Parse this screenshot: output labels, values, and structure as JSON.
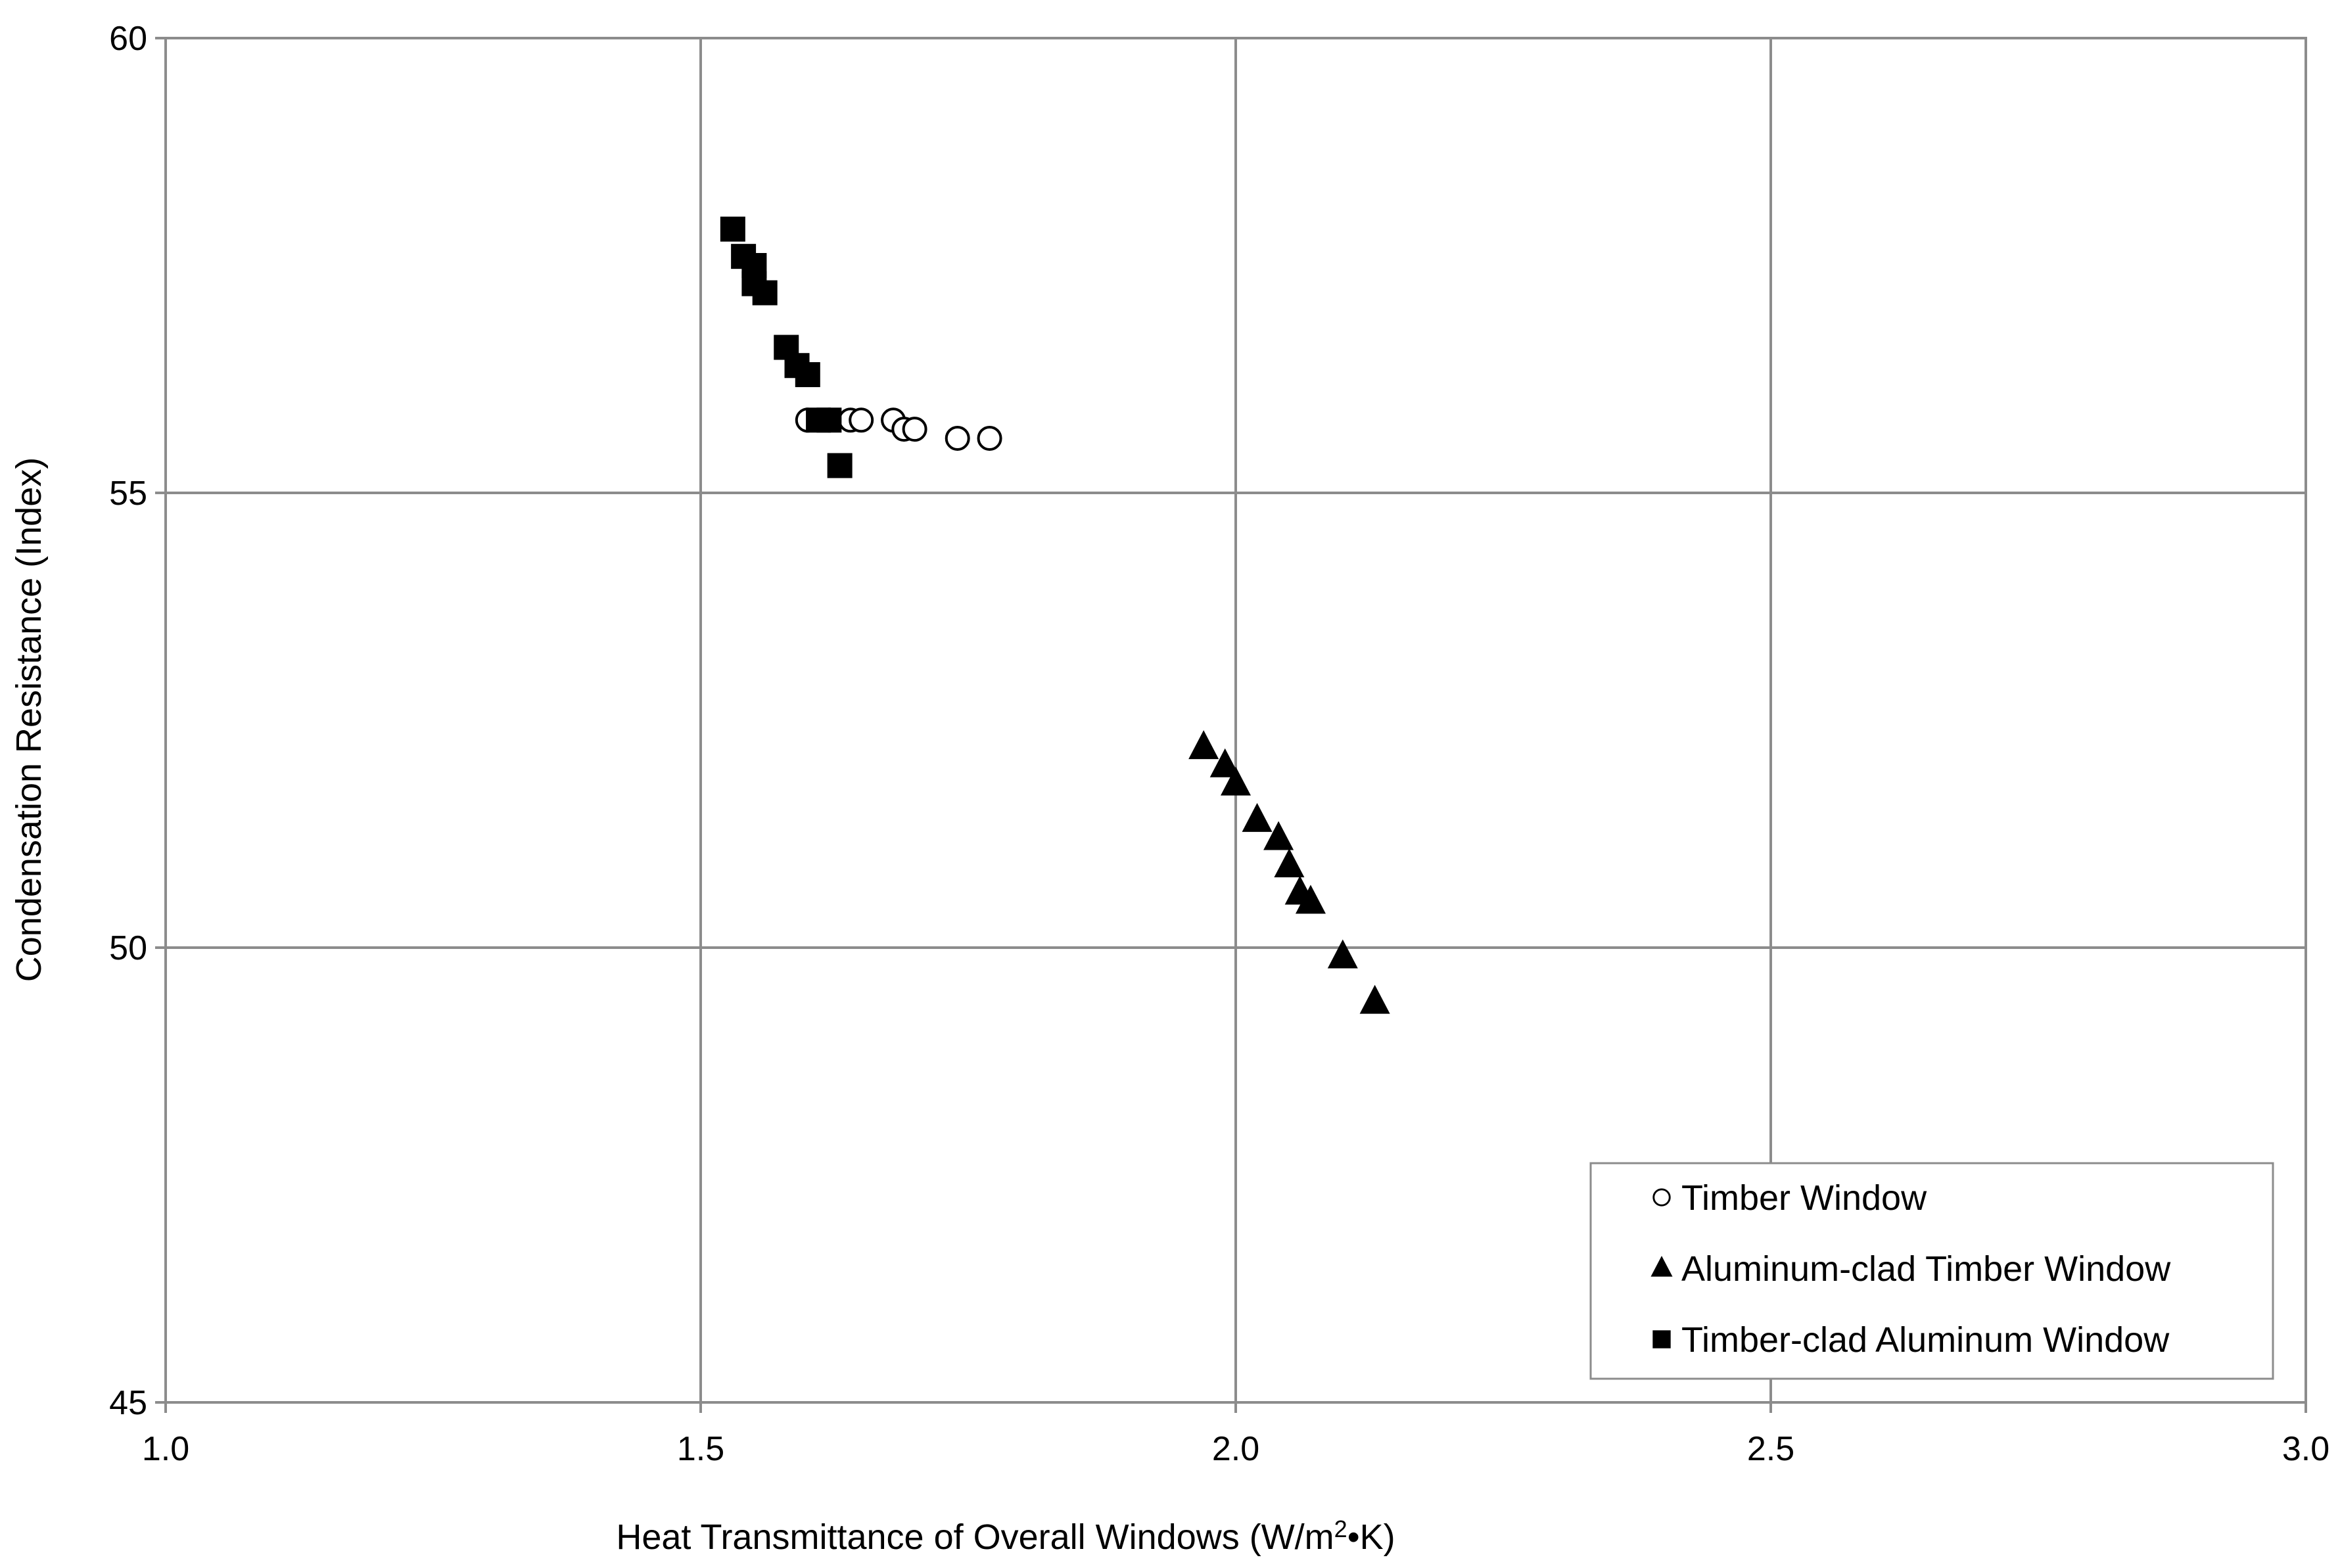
{
  "chart_data": {
    "type": "scatter",
    "title": "",
    "xlabel": "Heat Transmittance of Overall Windows (W/m",
    "xlabel_sup": "2",
    "xlabel_tail": "•K)",
    "ylabel": "Condensation Resistance (Index)",
    "xlim": [
      1.0,
      3.0
    ],
    "ylim": [
      45,
      60
    ],
    "xticks": [
      1.0,
      1.5,
      2.0,
      2.5,
      3.0
    ],
    "xtick_labels": [
      "1.0",
      "1.5",
      "2.0",
      "2.5",
      "3.0"
    ],
    "yticks": [
      45,
      50,
      55,
      60
    ],
    "ytick_labels": [
      "45",
      "50",
      "55",
      "60"
    ],
    "grid": true,
    "legend_position": "bottom-right",
    "colors": {
      "grid": "#8c8c8c",
      "marker": "#000000",
      "background": "#ffffff"
    },
    "series": [
      {
        "name": "Timber Window",
        "marker": "circle-open",
        "points": [
          [
            1.6,
            55.8
          ],
          [
            1.62,
            55.8
          ],
          [
            1.64,
            55.8
          ],
          [
            1.65,
            55.8
          ],
          [
            1.68,
            55.8
          ],
          [
            1.69,
            55.7
          ],
          [
            1.7,
            55.7
          ],
          [
            1.74,
            55.6
          ],
          [
            1.77,
            55.6
          ]
        ]
      },
      {
        "name": "Aluminum-clad Timber Window",
        "marker": "triangle-filled",
        "points": [
          [
            1.97,
            52.2
          ],
          [
            1.99,
            52.0
          ],
          [
            2.0,
            51.8
          ],
          [
            2.02,
            51.4
          ],
          [
            2.04,
            51.2
          ],
          [
            2.05,
            50.9
          ],
          [
            2.06,
            50.6
          ],
          [
            2.07,
            50.5
          ],
          [
            2.1,
            49.9
          ],
          [
            2.13,
            49.4
          ]
        ]
      },
      {
        "name": "Timber-clad Aluminum Window",
        "marker": "square-filled",
        "points": [
          [
            1.53,
            57.9
          ],
          [
            1.54,
            57.6
          ],
          [
            1.55,
            57.5
          ],
          [
            1.55,
            57.3
          ],
          [
            1.56,
            57.2
          ],
          [
            1.58,
            56.6
          ],
          [
            1.59,
            56.4
          ],
          [
            1.6,
            56.3
          ],
          [
            1.61,
            55.8
          ],
          [
            1.62,
            55.8
          ],
          [
            1.63,
            55.3
          ]
        ]
      }
    ]
  }
}
